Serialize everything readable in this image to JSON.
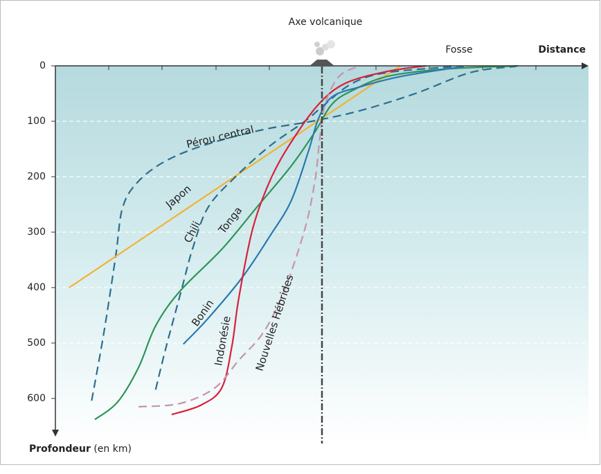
{
  "chart_data": {
    "type": "line",
    "volcanic_axis": {
      "label": "Axe volcanique",
      "x": 0
    },
    "trench_label": "Fosse",
    "xlabel": "Distance",
    "ylabel": "Profondeur",
    "ylabel_unit": "(en km)",
    "xlim": [
      -5,
      5
    ],
    "ylim": [
      0,
      670
    ],
    "yticks": [
      0,
      100,
      200,
      300,
      400,
      500,
      600
    ],
    "grid": true,
    "series": [
      {
        "name": "Pérou central",
        "color": "#2b6d8c",
        "dashed": true,
        "x": [
          -4.32,
          -4.09,
          -3.87,
          -3.74,
          -3.45,
          -2.92,
          -2.14,
          -1.1,
          -0.19,
          0.71,
          1.75,
          2.79,
          3.64
        ],
        "values": [
          604,
          481,
          344,
          256,
          209,
          171,
          141,
          115,
          100,
          81,
          50,
          12,
          1
        ]
      },
      {
        "name": "Japon",
        "color": "#f2b233",
        "dashed": false,
        "x": [
          -4.74,
          -1.64,
          1.47
        ],
        "values": [
          400,
          200,
          0
        ]
      },
      {
        "name": "Chili",
        "color": "#2b6d8c",
        "dashed": true,
        "x": [
          -3.12,
          -2.92,
          -2.64,
          -2.43,
          -2.14,
          -1.62,
          -0.97,
          -0.32,
          0.06,
          0.58,
          1.23,
          2.53
        ],
        "values": [
          584,
          506,
          406,
          331,
          256,
          200,
          144,
          100,
          69,
          31,
          12,
          1
        ]
      },
      {
        "name": "Tonga",
        "color": "#2e9457",
        "dashed": false,
        "x": [
          -4.26,
          -3.83,
          -3.44,
          -3.12,
          -2.66,
          -1.88,
          -1.23,
          -0.58,
          -0.13,
          0.19,
          0.58,
          1.23,
          2.27,
          3.68
        ],
        "values": [
          638,
          606,
          544,
          469,
          406,
          331,
          256,
          181,
          119,
          69,
          44,
          19,
          6,
          0
        ]
      },
      {
        "name": "Bonin",
        "color": "#2878b0",
        "dashed": false,
        "x": [
          -2.6,
          -2.14,
          -1.49,
          -0.97,
          -0.58,
          -0.26,
          -0.06,
          0.19,
          0.71,
          1.49,
          2.66
        ],
        "values": [
          502,
          456,
          381,
          306,
          244,
          156,
          94,
          56,
          38,
          19,
          1
        ]
      },
      {
        "name": "Indonésie",
        "color": "#d81f3c",
        "dashed": false,
        "x": [
          -2.82,
          -2.27,
          -1.88,
          -1.69,
          -1.56,
          -1.3,
          -0.97,
          -0.58,
          -0.06,
          0.45,
          1.23,
          1.95
        ],
        "values": [
          629,
          612,
          581,
          506,
          419,
          294,
          206,
          138,
          69,
          31,
          10,
          0
        ]
      },
      {
        "name": "Nouvelles Hébrides",
        "color": "#c892aa",
        "dashed": true,
        "x": [
          -3.44,
          -2.66,
          -2.01,
          -1.56,
          -1.1,
          -0.71,
          -0.32,
          -0.13,
          -0.04,
          0.06,
          0.32,
          0.71
        ],
        "values": [
          615,
          609,
          581,
          531,
          481,
          406,
          294,
          206,
          131,
          69,
          19,
          0
        ]
      }
    ]
  }
}
